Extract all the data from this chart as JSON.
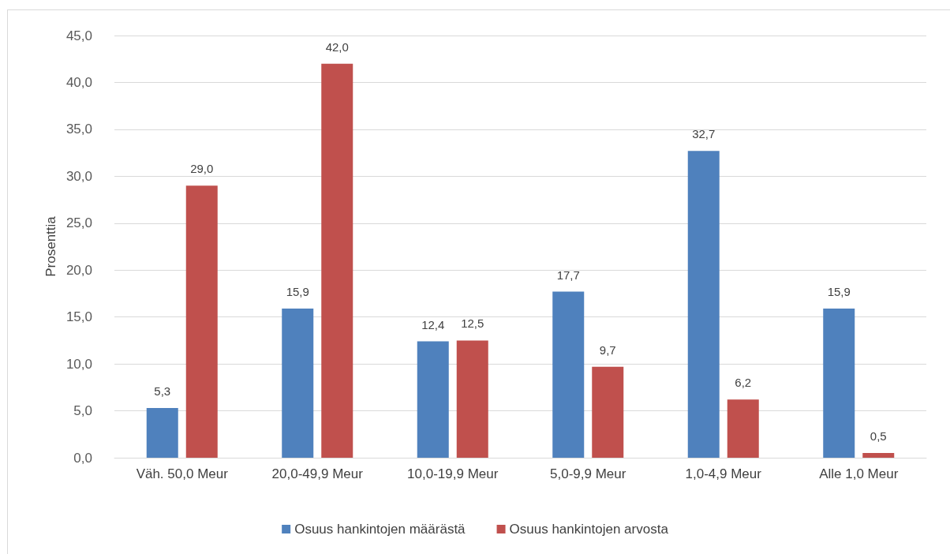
{
  "chart_data": {
    "type": "bar",
    "ylabel": "Prosenttia",
    "categories": [
      "Väh. 50,0 Meur",
      "20,0-49,9 Meur",
      "10,0-19,9 Meur",
      "5,0-9,9 Meur",
      "1,0-4,9 Meur",
      "Alle 1,0 Meur"
    ],
    "series": [
      {
        "name": "Osuus hankintojen määrästä",
        "color": "#4f81bd",
        "values": [
          5.3,
          15.9,
          12.4,
          17.7,
          32.7,
          15.9
        ],
        "value_labels": [
          "5,3",
          "15,9",
          "12,4",
          "17,7",
          "32,7",
          "15,9"
        ]
      },
      {
        "name": "Osuus hankintojen arvosta",
        "color": "#c0504d",
        "values": [
          29.0,
          42.0,
          12.5,
          9.7,
          6.2,
          0.5
        ],
        "value_labels": [
          "29,0",
          "42,0",
          "12,5",
          "9,7",
          "6,2",
          "0,5"
        ]
      }
    ],
    "ylim": [
      0,
      45
    ],
    "yticks": [
      {
        "value": 0,
        "label": "0,0"
      },
      {
        "value": 5,
        "label": "5,0"
      },
      {
        "value": 10,
        "label": "10,0"
      },
      {
        "value": 15,
        "label": "15,0"
      },
      {
        "value": 20,
        "label": "20,0"
      },
      {
        "value": 25,
        "label": "25,0"
      },
      {
        "value": 30,
        "label": "30,0"
      },
      {
        "value": 35,
        "label": "35,0"
      },
      {
        "value": 40,
        "label": "40,0"
      },
      {
        "value": 45,
        "label": "45,0"
      }
    ],
    "grid": true,
    "legend": "bottom"
  }
}
